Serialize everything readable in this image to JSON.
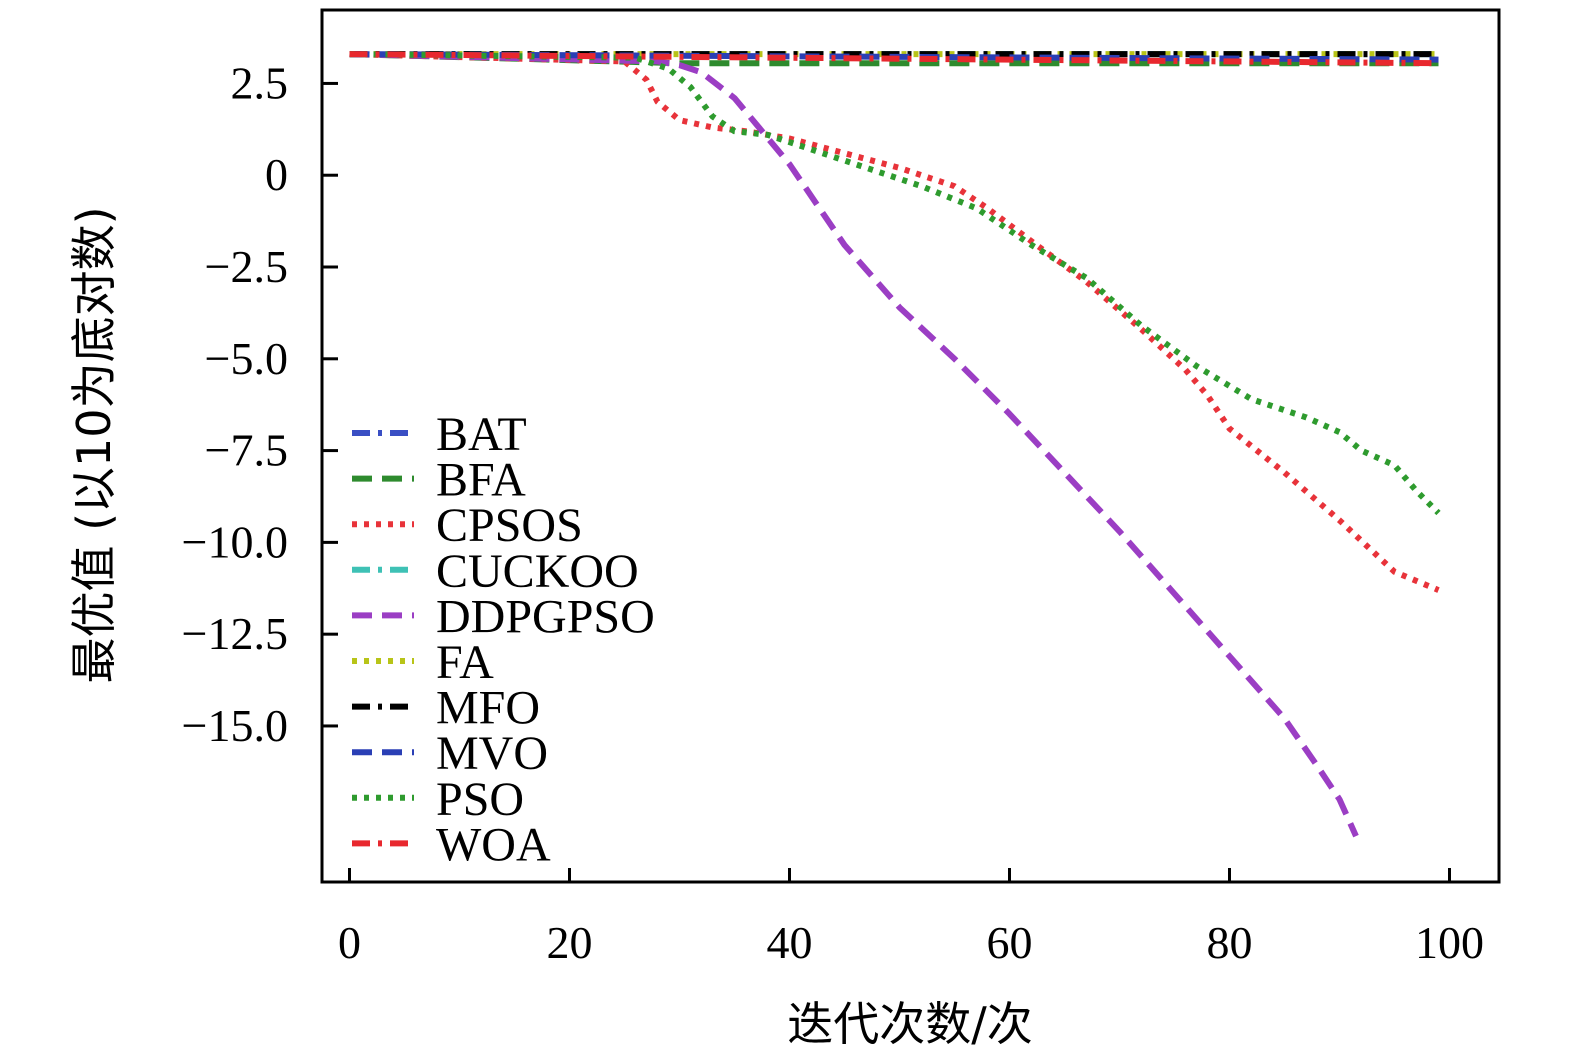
{
  "chart_data": {
    "type": "line",
    "title": "",
    "xlabel": "迭代次数/次",
    "ylabel": "最优值 (以10为底对数)",
    "xlim": [
      -2.5,
      104.5
    ],
    "ylim": [
      -19.25,
      4.5
    ],
    "xticks": [
      0,
      20,
      40,
      60,
      80,
      100
    ],
    "yticks": [
      2.5,
      0,
      -2.5,
      -5.0,
      -7.5,
      -10.0,
      -12.5,
      -15.0
    ],
    "ytick_labels": [
      "2.5",
      "0",
      "−2.5",
      "−5.0",
      "−7.5",
      "−10.0",
      "−12.5",
      "−15.0"
    ],
    "grid": false,
    "legend_position": "lower-left",
    "series": [
      {
        "name": "BAT",
        "color": "#3a4fc4",
        "dash": "dashdot",
        "points": [
          [
            0,
            3.3
          ],
          [
            99,
            3.3
          ]
        ]
      },
      {
        "name": "BFA",
        "color": "#2e8b2e",
        "dash": "dashed",
        "points": [
          [
            0,
            3.3
          ],
          [
            30,
            3.05
          ],
          [
            99,
            3.05
          ]
        ]
      },
      {
        "name": "CPSOS",
        "color": "#e8333a",
        "dash": "dotted",
        "points": [
          [
            0,
            3.3
          ],
          [
            25,
            3.1
          ],
          [
            27,
            2.6
          ],
          [
            28,
            2.0
          ],
          [
            30,
            1.5
          ],
          [
            33,
            1.3
          ],
          [
            36,
            1.2
          ],
          [
            40,
            1.0
          ],
          [
            45,
            0.6
          ],
          [
            50,
            0.2
          ],
          [
            55,
            -0.3
          ],
          [
            58,
            -0.9
          ],
          [
            62,
            -1.8
          ],
          [
            67,
            -2.9
          ],
          [
            72,
            -4.2
          ],
          [
            76,
            -5.3
          ],
          [
            78,
            -6.0
          ],
          [
            80,
            -6.9
          ],
          [
            85,
            -8.1
          ],
          [
            90,
            -9.4
          ],
          [
            95,
            -10.8
          ],
          [
            99,
            -11.3
          ]
        ]
      },
      {
        "name": "CUCKOO",
        "color": "#3ec1b5",
        "dash": "dashdot",
        "points": [
          [
            0,
            3.3
          ],
          [
            99,
            3.3
          ]
        ]
      },
      {
        "name": "DDPGPSO",
        "color": "#9b3ec4",
        "dash": "dashed",
        "points": [
          [
            0,
            3.3
          ],
          [
            28,
            3.1
          ],
          [
            30,
            3.0
          ],
          [
            32,
            2.8
          ],
          [
            35,
            2.1
          ],
          [
            40,
            0.3
          ],
          [
            45,
            -1.9
          ],
          [
            50,
            -3.6
          ],
          [
            55,
            -5.0
          ],
          [
            60,
            -6.5
          ],
          [
            65,
            -8.1
          ],
          [
            70,
            -9.7
          ],
          [
            75,
            -11.4
          ],
          [
            80,
            -13.1
          ],
          [
            85,
            -14.8
          ],
          [
            88,
            -16.1
          ],
          [
            90,
            -17.0
          ],
          [
            91.5,
            -18.0
          ]
        ]
      },
      {
        "name": "FA",
        "color": "#b8c418",
        "dash": "dotted",
        "points": [
          [
            0,
            3.3
          ],
          [
            99,
            3.3
          ]
        ]
      },
      {
        "name": "MFO",
        "color": "#000000",
        "dash": "dashdot",
        "points": [
          [
            0,
            3.3
          ],
          [
            99,
            3.3
          ]
        ]
      },
      {
        "name": "MVO",
        "color": "#2a3fb5",
        "dash": "dashed",
        "points": [
          [
            0,
            3.3
          ],
          [
            99,
            3.15
          ]
        ]
      },
      {
        "name": "PSO",
        "color": "#2e9b2e",
        "dash": "dotted",
        "points": [
          [
            0,
            3.3
          ],
          [
            26,
            3.2
          ],
          [
            29,
            2.9
          ],
          [
            31,
            2.4
          ],
          [
            33,
            1.6
          ],
          [
            35,
            1.2
          ],
          [
            38,
            1.1
          ],
          [
            42,
            0.7
          ],
          [
            47,
            0.2
          ],
          [
            52,
            -0.3
          ],
          [
            57,
            -0.9
          ],
          [
            62,
            -1.9
          ],
          [
            67,
            -2.8
          ],
          [
            72,
            -4.1
          ],
          [
            77,
            -5.2
          ],
          [
            82,
            -6.1
          ],
          [
            87,
            -6.6
          ],
          [
            90,
            -7.0
          ],
          [
            92,
            -7.5
          ],
          [
            95,
            -7.9
          ],
          [
            97,
            -8.6
          ],
          [
            99,
            -9.2
          ]
        ]
      },
      {
        "name": "WOA",
        "color": "#e8282e",
        "dash": "dashdot",
        "points": [
          [
            0,
            3.3
          ],
          [
            99,
            3.05
          ]
        ]
      }
    ]
  }
}
